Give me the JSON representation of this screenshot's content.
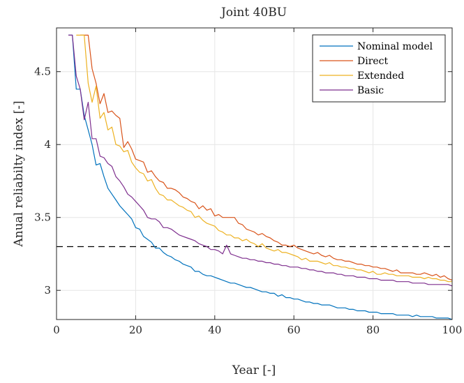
{
  "chart_data": {
    "type": "line",
    "title": "Joint 40BU",
    "xlabel": "Year [-]",
    "ylabel": "Anual reliabilty index [-]",
    "xlim": [
      0,
      100
    ],
    "ylim": [
      2.8,
      4.8
    ],
    "xticks": [
      0,
      20,
      40,
      60,
      80,
      100
    ],
    "yticks": [
      3,
      3.5,
      4,
      4.5
    ],
    "xtick_labels": [
      "0",
      "20",
      "40",
      "60",
      "80",
      "100"
    ],
    "ytick_labels": [
      "3",
      "3.5",
      "4",
      "4.5"
    ],
    "grid": true,
    "legend_position": "top-right",
    "reference_line": {
      "y": 3.3,
      "style": "dashed",
      "color": "#000000"
    },
    "series": [
      {
        "name": "Nominal model",
        "color": "#0072BD",
        "x": [
          3,
          4,
          5,
          6,
          7,
          8,
          9,
          10,
          11,
          12,
          13,
          14,
          15,
          16,
          17,
          18,
          19,
          20,
          21,
          22,
          23,
          24,
          25,
          26,
          27,
          28,
          29,
          30,
          31,
          32,
          33,
          34,
          35,
          36,
          37,
          38,
          39,
          40,
          41,
          42,
          43,
          44,
          45,
          46,
          47,
          48,
          49,
          50,
          51,
          52,
          53,
          54,
          55,
          56,
          57,
          58,
          59,
          60,
          61,
          62,
          63,
          64,
          65,
          66,
          67,
          68,
          69,
          70,
          71,
          72,
          73,
          74,
          75,
          76,
          77,
          78,
          79,
          80,
          81,
          82,
          83,
          84,
          85,
          86,
          87,
          88,
          89,
          90,
          91,
          92,
          93,
          94,
          95,
          96,
          97,
          98,
          99,
          100
        ],
        "y": [
          4.75,
          4.75,
          4.38,
          4.38,
          4.2,
          4.1,
          4.0,
          3.86,
          3.87,
          3.78,
          3.7,
          3.66,
          3.62,
          3.58,
          3.55,
          3.52,
          3.49,
          3.43,
          3.42,
          3.37,
          3.35,
          3.33,
          3.29,
          3.29,
          3.26,
          3.24,
          3.23,
          3.21,
          3.2,
          3.18,
          3.17,
          3.16,
          3.13,
          3.13,
          3.11,
          3.1,
          3.1,
          3.09,
          3.08,
          3.07,
          3.06,
          3.05,
          3.05,
          3.04,
          3.03,
          3.02,
          3.02,
          3.01,
          3.0,
          2.99,
          2.99,
          2.98,
          2.98,
          2.96,
          2.97,
          2.95,
          2.95,
          2.94,
          2.94,
          2.93,
          2.92,
          2.92,
          2.91,
          2.91,
          2.9,
          2.9,
          2.9,
          2.89,
          2.88,
          2.88,
          2.88,
          2.87,
          2.87,
          2.86,
          2.86,
          2.86,
          2.85,
          2.85,
          2.85,
          2.84,
          2.84,
          2.84,
          2.84,
          2.83,
          2.83,
          2.83,
          2.83,
          2.82,
          2.83,
          2.82,
          2.82,
          2.82,
          2.82,
          2.81,
          2.81,
          2.81,
          2.81,
          2.8
        ]
      },
      {
        "name": "Direct",
        "color": "#D95319",
        "x": [
          6,
          7,
          8,
          9,
          10,
          11,
          12,
          13,
          14,
          15,
          16,
          17,
          18,
          19,
          20,
          21,
          22,
          23,
          24,
          25,
          26,
          27,
          28,
          29,
          30,
          31,
          32,
          33,
          34,
          35,
          36,
          37,
          38,
          39,
          40,
          41,
          42,
          43,
          44,
          45,
          46,
          47,
          48,
          49,
          50,
          51,
          52,
          53,
          54,
          55,
          56,
          57,
          58,
          59,
          60,
          61,
          62,
          63,
          64,
          65,
          66,
          67,
          68,
          69,
          70,
          71,
          72,
          73,
          74,
          75,
          76,
          77,
          78,
          79,
          80,
          81,
          82,
          83,
          84,
          85,
          86,
          87,
          88,
          89,
          90,
          91,
          92,
          93,
          94,
          95,
          96,
          97,
          98,
          99,
          100
        ],
        "y": [
          4.75,
          4.75,
          4.75,
          4.52,
          4.42,
          4.28,
          4.35,
          4.22,
          4.23,
          4.2,
          4.18,
          3.98,
          4.02,
          3.97,
          3.9,
          3.89,
          3.88,
          3.81,
          3.82,
          3.78,
          3.75,
          3.74,
          3.7,
          3.7,
          3.69,
          3.67,
          3.64,
          3.63,
          3.61,
          3.6,
          3.56,
          3.58,
          3.55,
          3.56,
          3.51,
          3.52,
          3.5,
          3.5,
          3.5,
          3.5,
          3.46,
          3.45,
          3.42,
          3.41,
          3.4,
          3.38,
          3.39,
          3.37,
          3.36,
          3.34,
          3.33,
          3.31,
          3.31,
          3.3,
          3.31,
          3.29,
          3.28,
          3.27,
          3.26,
          3.25,
          3.26,
          3.24,
          3.23,
          3.24,
          3.22,
          3.21,
          3.21,
          3.2,
          3.2,
          3.19,
          3.18,
          3.18,
          3.17,
          3.17,
          3.16,
          3.16,
          3.15,
          3.15,
          3.14,
          3.13,
          3.14,
          3.12,
          3.12,
          3.12,
          3.12,
          3.11,
          3.11,
          3.12,
          3.11,
          3.1,
          3.11,
          3.09,
          3.1,
          3.08,
          3.07
        ]
      },
      {
        "name": "Extended",
        "color": "#EDB120",
        "x": [
          5,
          6,
          7,
          8,
          9,
          10,
          11,
          12,
          13,
          14,
          15,
          16,
          17,
          18,
          19,
          20,
          21,
          22,
          23,
          24,
          25,
          26,
          27,
          28,
          29,
          30,
          31,
          32,
          33,
          34,
          35,
          36,
          37,
          38,
          39,
          40,
          41,
          42,
          43,
          44,
          45,
          46,
          47,
          48,
          49,
          50,
          51,
          52,
          53,
          54,
          55,
          56,
          57,
          58,
          59,
          60,
          61,
          62,
          63,
          64,
          65,
          66,
          67,
          68,
          69,
          70,
          71,
          72,
          73,
          74,
          75,
          76,
          77,
          78,
          79,
          80,
          81,
          82,
          83,
          84,
          85,
          86,
          87,
          88,
          89,
          90,
          91,
          92,
          93,
          94,
          95,
          96,
          97,
          98,
          99,
          100
        ],
        "y": [
          4.75,
          4.75,
          4.75,
          4.42,
          4.29,
          4.4,
          4.18,
          4.22,
          4.1,
          4.12,
          4.0,
          3.99,
          3.95,
          3.96,
          3.88,
          3.84,
          3.81,
          3.8,
          3.75,
          3.76,
          3.7,
          3.66,
          3.65,
          3.62,
          3.62,
          3.6,
          3.58,
          3.57,
          3.55,
          3.54,
          3.5,
          3.51,
          3.48,
          3.46,
          3.45,
          3.44,
          3.41,
          3.4,
          3.38,
          3.38,
          3.36,
          3.36,
          3.34,
          3.35,
          3.33,
          3.32,
          3.3,
          3.32,
          3.29,
          3.28,
          3.27,
          3.28,
          3.26,
          3.26,
          3.25,
          3.24,
          3.23,
          3.21,
          3.22,
          3.2,
          3.2,
          3.2,
          3.19,
          3.18,
          3.19,
          3.17,
          3.17,
          3.16,
          3.16,
          3.15,
          3.15,
          3.14,
          3.14,
          3.13,
          3.12,
          3.13,
          3.11,
          3.11,
          3.12,
          3.11,
          3.11,
          3.1,
          3.1,
          3.1,
          3.1,
          3.09,
          3.09,
          3.09,
          3.08,
          3.09,
          3.08,
          3.08,
          3.07,
          3.07,
          3.06,
          3.06
        ]
      },
      {
        "name": "Basic",
        "color": "#7E2F8E",
        "x": [
          3,
          4,
          5,
          6,
          7,
          8,
          9,
          10,
          11,
          12,
          13,
          14,
          15,
          16,
          17,
          18,
          19,
          20,
          21,
          22,
          23,
          24,
          25,
          26,
          27,
          28,
          29,
          30,
          31,
          32,
          33,
          34,
          35,
          36,
          37,
          38,
          39,
          40,
          41,
          42,
          43,
          44,
          45,
          46,
          47,
          48,
          49,
          50,
          51,
          52,
          53,
          54,
          55,
          56,
          57,
          58,
          59,
          60,
          61,
          62,
          63,
          64,
          65,
          66,
          67,
          68,
          69,
          70,
          71,
          72,
          73,
          74,
          75,
          76,
          77,
          78,
          79,
          80,
          81,
          82,
          83,
          84,
          85,
          86,
          87,
          88,
          89,
          90,
          91,
          92,
          93,
          94,
          95,
          96,
          97,
          98,
          99,
          100
        ],
        "y": [
          4.75,
          4.75,
          4.47,
          4.38,
          4.17,
          4.29,
          4.04,
          4.04,
          3.92,
          3.91,
          3.87,
          3.85,
          3.78,
          3.75,
          3.71,
          3.66,
          3.64,
          3.61,
          3.58,
          3.55,
          3.5,
          3.49,
          3.49,
          3.47,
          3.43,
          3.43,
          3.42,
          3.4,
          3.38,
          3.37,
          3.36,
          3.35,
          3.34,
          3.32,
          3.31,
          3.3,
          3.28,
          3.28,
          3.27,
          3.25,
          3.31,
          3.25,
          3.24,
          3.23,
          3.22,
          3.22,
          3.21,
          3.21,
          3.2,
          3.2,
          3.19,
          3.19,
          3.18,
          3.18,
          3.17,
          3.17,
          3.16,
          3.16,
          3.16,
          3.15,
          3.15,
          3.14,
          3.14,
          3.13,
          3.13,
          3.12,
          3.12,
          3.12,
          3.11,
          3.11,
          3.1,
          3.1,
          3.1,
          3.09,
          3.09,
          3.09,
          3.08,
          3.08,
          3.08,
          3.07,
          3.07,
          3.07,
          3.07,
          3.06,
          3.06,
          3.06,
          3.06,
          3.05,
          3.05,
          3.05,
          3.05,
          3.04,
          3.04,
          3.04,
          3.04,
          3.04,
          3.04,
          3.03
        ]
      }
    ]
  }
}
